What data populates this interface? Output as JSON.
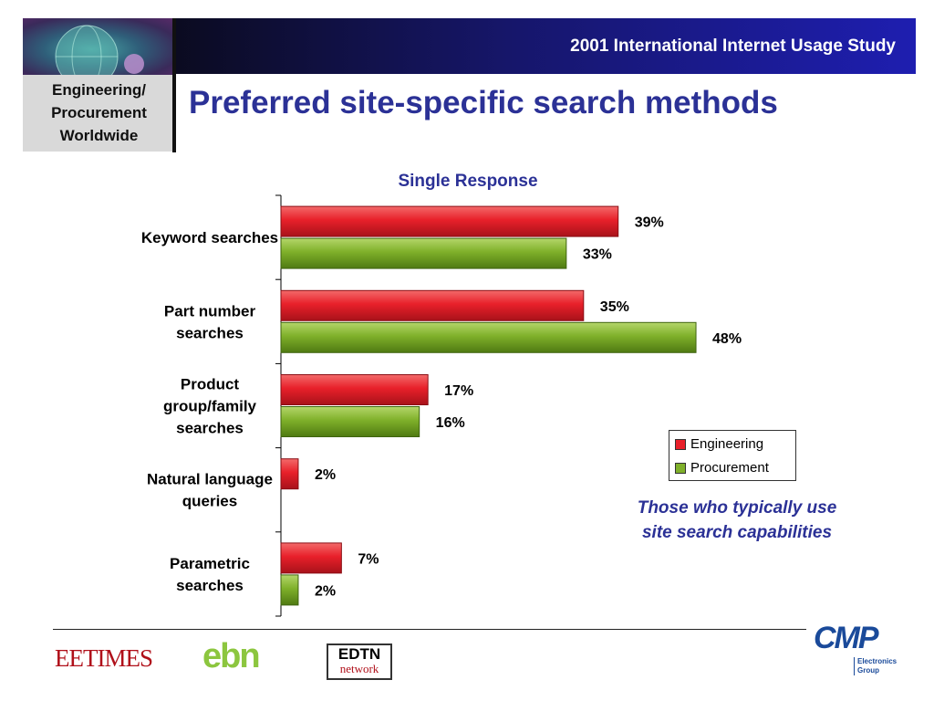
{
  "header": {
    "study_title": "2001 International Internet Usage Study"
  },
  "logo": {
    "line1": "Engineering/",
    "line2": "Procurement",
    "line3": "Worldwide"
  },
  "page_title": "Preferred site-specific search methods",
  "note": {
    "line1": "Those who typically use",
    "line2": "site search capabilities"
  },
  "footer": {
    "eetimes": "EETIMES",
    "ebn": "ebn",
    "edtn_top": "EDTN",
    "edtn_bottom": "network",
    "cmp": "CMP",
    "cmp_sub1": "Electronics",
    "cmp_sub2": "Group"
  },
  "colors": {
    "engineering": "#e8202a",
    "procurement": "#7fb02a",
    "title_blue": "#2b3196"
  },
  "chart_data": {
    "type": "bar",
    "orientation": "horizontal",
    "title": "Single Response",
    "categories": [
      [
        "Keyword searches"
      ],
      [
        "Part number",
        "searches"
      ],
      [
        "Product",
        "group/family",
        "searches"
      ],
      [
        "Natural language",
        "queries"
      ],
      [
        "Parametric",
        "searches"
      ]
    ],
    "series": [
      {
        "name": "Engineering",
        "values": [
          39,
          35,
          17,
          2,
          7
        ],
        "labels": [
          "39%",
          "35%",
          "17%",
          "2%",
          "7%"
        ]
      },
      {
        "name": "Procurement",
        "values": [
          33,
          48,
          16,
          null,
          2
        ],
        "labels": [
          "33%",
          "48%",
          "16%",
          "",
          "2%"
        ]
      }
    ],
    "xlim": [
      0,
      50
    ],
    "legend": "right"
  }
}
